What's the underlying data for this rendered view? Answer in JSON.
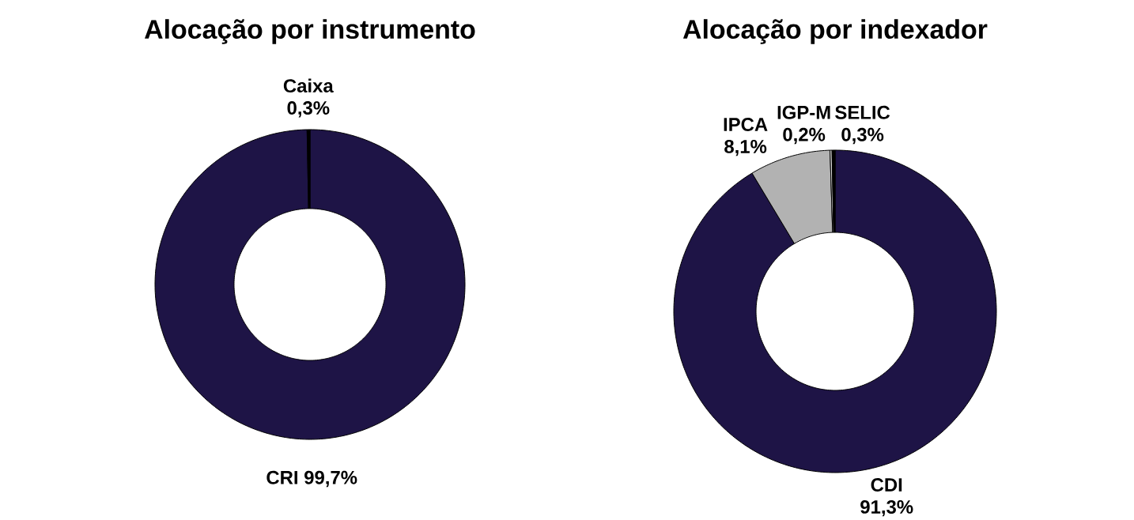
{
  "chart_data": [
    {
      "type": "donut",
      "title": "Alocação por instrumento",
      "categories": [
        "CRI",
        "Caixa"
      ],
      "values": [
        99.7,
        0.3
      ],
      "value_labels": [
        "99,7%",
        "0,3%"
      ],
      "colors": [
        "#1e1446",
        "#000000"
      ]
    },
    {
      "type": "donut",
      "title": "Alocação por indexador",
      "categories": [
        "CDI",
        "IPCA",
        "IGP-M",
        "SELIC"
      ],
      "values": [
        91.3,
        8.1,
        0.2,
        0.3
      ],
      "value_labels": [
        "91,3%",
        "8,1%",
        "0,2%",
        "0,3%"
      ],
      "colors": [
        "#1e1446",
        "#b2b2b2",
        "#d9d9d9",
        "#000000"
      ]
    }
  ]
}
